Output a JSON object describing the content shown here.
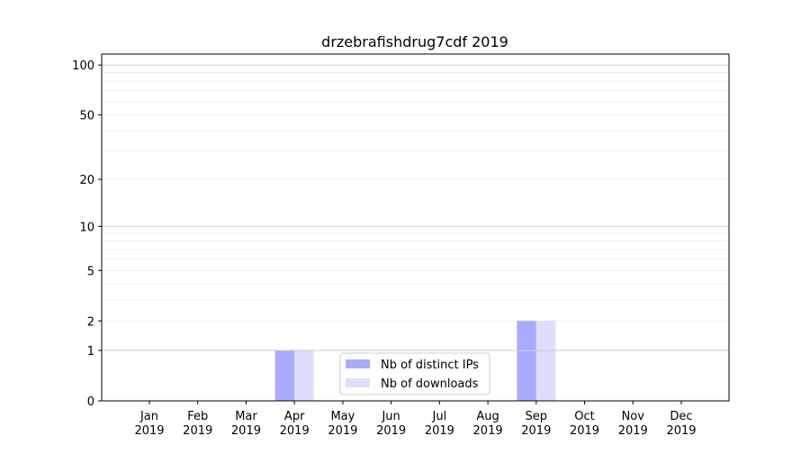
{
  "chart_data": {
    "type": "bar",
    "title": "drzebrafishdrug7cdf 2019",
    "xlabel": "",
    "ylabel": "",
    "categories": [
      "Jan\n2019",
      "Feb\n2019",
      "Mar\n2019",
      "Apr\n2019",
      "May\n2019",
      "Jun\n2019",
      "Jul\n2019",
      "Aug\n2019",
      "Sep\n2019",
      "Oct\n2019",
      "Nov\n2019",
      "Dec\n2019"
    ],
    "series": [
      {
        "name": "Nb of distinct IPs",
        "color": "#aaaaff",
        "values": [
          0,
          0,
          0,
          1,
          0,
          0,
          0,
          0,
          2,
          0,
          0,
          0
        ]
      },
      {
        "name": "Nb of downloads",
        "color": "#ddddff",
        "values": [
          0,
          0,
          0,
          1,
          0,
          0,
          0,
          0,
          2,
          0,
          0,
          0
        ]
      }
    ],
    "yscale": "log(1+y)",
    "ylim": [
      0,
      116
    ],
    "yticks": [
      0,
      1,
      2,
      5,
      10,
      20,
      50,
      100
    ],
    "ytick_labels": [
      "0",
      "1",
      "2",
      "5",
      "10",
      "20",
      "50",
      "100"
    ],
    "grid": true,
    "legend_position": "lower-center"
  }
}
